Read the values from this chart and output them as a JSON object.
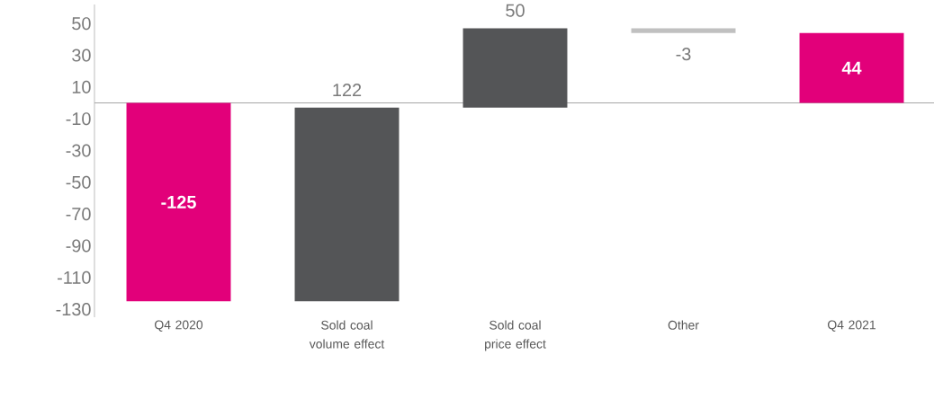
{
  "chart_data": {
    "type": "bar",
    "categories": [
      "Q4 2020",
      "Sold coal volume effect",
      "Sold coal price effect",
      "Other",
      "Q4 2021"
    ],
    "values": [
      -125,
      122,
      50,
      -3,
      44
    ],
    "base": [
      0,
      -125,
      -3,
      47,
      0
    ],
    "colors": [
      "#e2007a",
      "#545557",
      "#545557",
      "#c0c0c0",
      "#e2007a"
    ],
    "data_labels": true,
    "ylim": [
      -135,
      62
    ],
    "yticks": [
      -130,
      -110,
      -90,
      -70,
      -50,
      -30,
      -10,
      10,
      30,
      50
    ],
    "ref_lines": [
      {
        "axis": "y",
        "value": 0,
        "color": "#a6a6a6"
      }
    ],
    "grid": false
  }
}
